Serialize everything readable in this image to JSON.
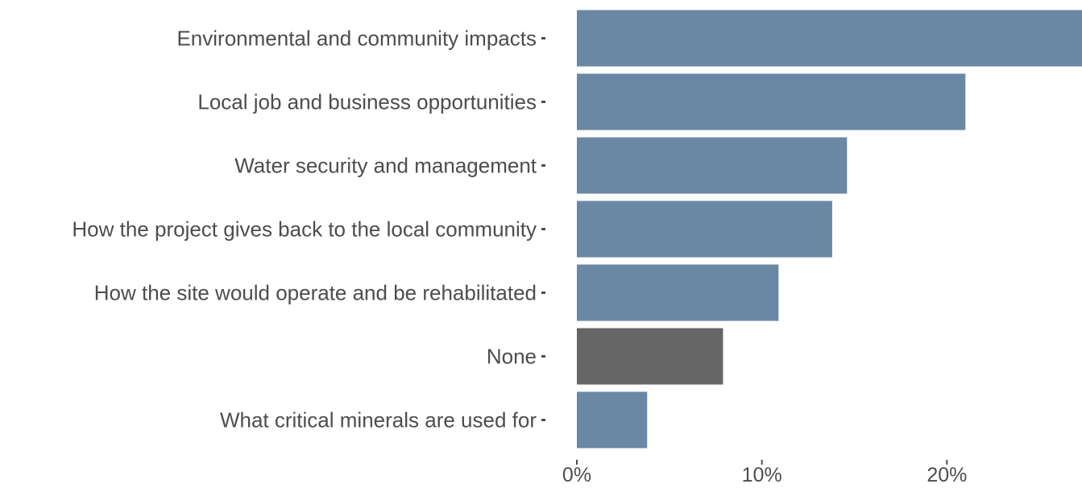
{
  "chart_data": {
    "type": "bar",
    "orientation": "horizontal",
    "categories": [
      "Environmental and community impacts",
      "Local job and business opportunities",
      "Water security and management",
      "How the project gives back to the local community",
      "How the site would operate and be rehabilitated",
      "None",
      "What critical minerals are used for"
    ],
    "values": [
      28,
      21,
      14.6,
      13.8,
      10.9,
      7.9,
      3.8
    ],
    "bar_colors": [
      "#6a88a3",
      "#6a88a3",
      "#6a88a3",
      "#6a88a3",
      "#6a88a3",
      "#666666",
      "#6a88a3"
    ],
    "x_ticks": [
      0,
      10,
      20
    ],
    "x_tick_labels": [
      "0%",
      "10%",
      "20%"
    ],
    "xlim": [
      0,
      27.3
    ],
    "grid": false,
    "title": "",
    "xlabel": "",
    "ylabel": ""
  }
}
